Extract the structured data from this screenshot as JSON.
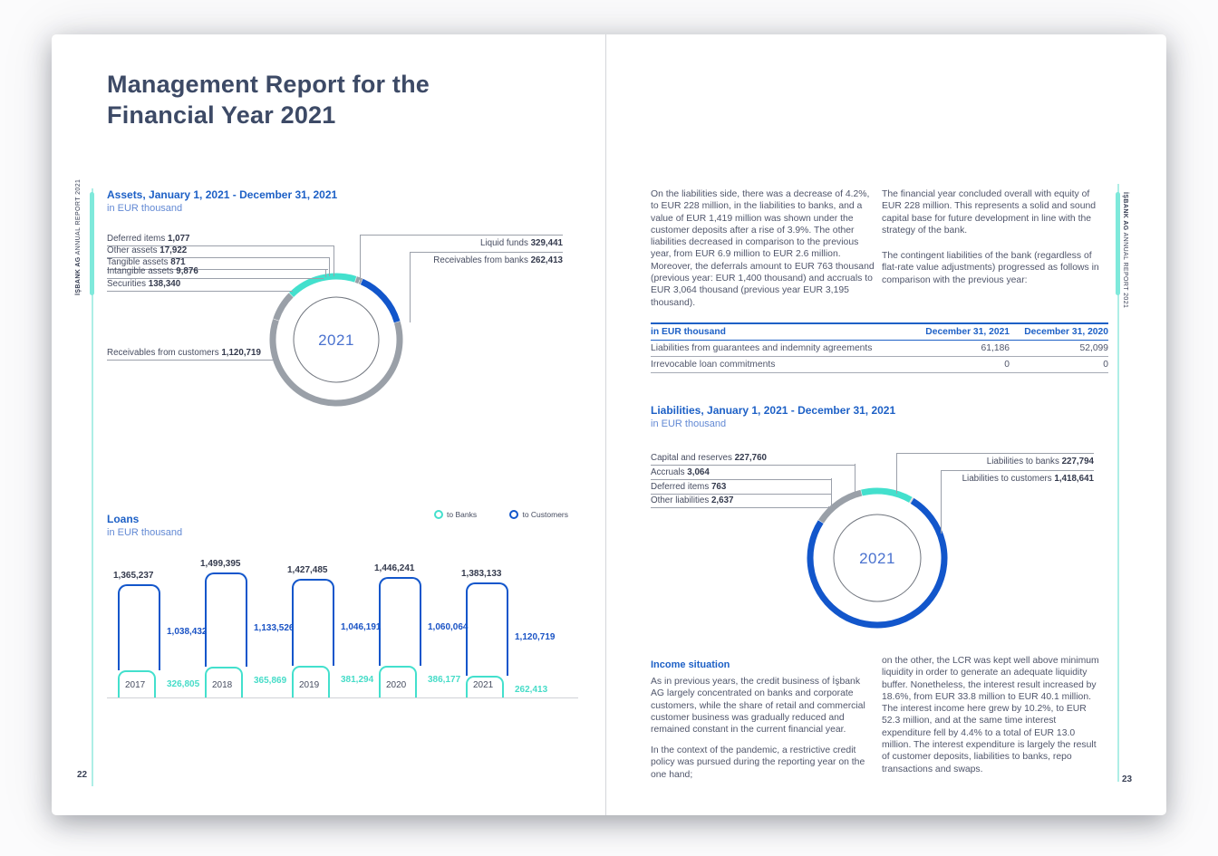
{
  "report": {
    "brand_bold": "İŞBANK AG",
    "brand_rest": " ANNUAL REPORT 2021",
    "accent_teal": "#43e0cd",
    "accent_blue": "#1256cb",
    "accent_gray": "#9aa0a8"
  },
  "left_page": {
    "page_number": "22",
    "title": "Management Report for the Financial Year 2021",
    "assets": {
      "callouts_left": [
        {
          "label": "Deferred items",
          "value": "1,077"
        },
        {
          "label": "Other assets",
          "value": "17,922"
        },
        {
          "label": "Tangible assets",
          "value": "871"
        },
        {
          "label": "Intangible assets",
          "value": "9,876"
        },
        {
          "label": "Securities",
          "value": "138,340"
        },
        {
          "label": "Receivables from customers",
          "value": "1,120,719"
        }
      ],
      "callouts_right": [
        {
          "label": "Liquid funds",
          "value": "329,441"
        },
        {
          "label": "Receivables from banks",
          "value": "262,413"
        }
      ]
    }
  },
  "right_page": {
    "page_number": "23",
    "col1_paragraph": "On the liabilities side, there was a decrease of 4.2%, to EUR 228 million, in the liabilities to banks, and a value of EUR 1,419 million was shown under the customer deposits after a rise of 3.9%. The other liabilities decreased in comparison to the previous year, from EUR 6.9 million to EUR 2.6 million. Moreover, the deferrals amount to EUR 763 thousand (previous year: EUR 1,400 thousand) and accruals to EUR 3,064 thousand (previous year EUR 3,195 thousand).",
    "col2_paragraphs": [
      "The financial year concluded overall with equity of EUR 228 million. This represents a solid and sound capital base for future development in line with the strategy of the bank.",
      "The contingent liabilities of the bank (regardless of flat-rate value adjustments) progressed as follows in comparison with the previous year:"
    ],
    "table": {
      "headers": [
        "in EUR thousand",
        "December 31, 2021",
        "December 31, 2020"
      ],
      "rows": [
        [
          "Liabilities from guarantees and indemnity agreements",
          "61,186",
          "52,099"
        ],
        [
          "Irrevocable loan commitments",
          "0",
          "0"
        ]
      ]
    },
    "liabilities": {
      "callouts_left": [
        {
          "label": "Capital and reserves",
          "value": "227,760"
        },
        {
          "label": "Accruals",
          "value": "3,064"
        },
        {
          "label": "Deferred items",
          "value": "763"
        },
        {
          "label": "Other liabilities",
          "value": "2,637"
        }
      ],
      "callouts_right": [
        {
          "label": "Liabilities to banks",
          "value": "227,794"
        },
        {
          "label": "Liabilities to customers",
          "value": "1,418,641"
        }
      ]
    },
    "income": {
      "heading": "Income situation",
      "col1_paragraphs": [
        "As in previous years, the credit business of İşbank AG largely concentrated on banks and corporate customers, while the share of retail and commercial customer business was gradually reduced and remained constant in the current financial year.",
        "In the context of the pandemic, a restrictive credit policy was pursued during the reporting year on the one hand;"
      ],
      "col2_paragraph": "on the other, the LCR was kept well above minimum liquidity in order to generate an adequate liquidity buffer. Nonetheless, the interest result increased by 18.6%, from EUR 33.8 million to EUR 40.1 million. The interest income here grew by 10.2%, to EUR 52.3 million, and at the same time interest expenditure fell by 4.4% to a total of EUR 13.0 million. The interest expenditure is largely the result of customer deposits, liabilities to banks, repo transactions and swaps."
    }
  },
  "chart_data": [
    {
      "type": "pie",
      "variant": "donut",
      "title": "Assets, January 1, 2021 - December 31, 2021",
      "unit": "in EUR thousand",
      "center_label": "2021",
      "start_angle": -45,
      "legend_position": "callouts",
      "segments": [
        {
          "label": "Liquid funds",
          "value": 329441,
          "color": "#43e0cd"
        },
        {
          "label": "Deferred items",
          "value": 1077,
          "color": "#9aa0a8"
        },
        {
          "label": "Other assets",
          "value": 17922,
          "color": "#9aa0a8"
        },
        {
          "label": "Tangible assets",
          "value": 871,
          "color": "#9aa0a8"
        },
        {
          "label": "Intangible assets",
          "value": 9876,
          "color": "#9aa0a8"
        },
        {
          "label": "Receivables from banks",
          "value": 262413,
          "color": "#1256cb"
        },
        {
          "label": "Receivables from customers",
          "value": 1120719,
          "color": "#9aa0a8"
        },
        {
          "label": "Securities",
          "value": 138340,
          "color": "#9aa0a8"
        }
      ]
    },
    {
      "type": "bar",
      "title": "Loans",
      "unit": "in EUR thousand",
      "categories": [
        "2017",
        "2018",
        "2019",
        "2020",
        "2021"
      ],
      "totals": [
        1365237,
        1499395,
        1427485,
        1446241,
        1383133
      ],
      "series": [
        {
          "name": "to Banks",
          "color": "#43e0cd",
          "values": [
            326805,
            365869,
            381294,
            386177,
            262413
          ]
        },
        {
          "name": "to Customers",
          "color": "#1256cb",
          "values": [
            1038432,
            1133526,
            1046191,
            1060064,
            1120719
          ]
        }
      ],
      "legend_position": "top-right",
      "grid": false
    },
    {
      "type": "pie",
      "variant": "donut",
      "title": "Liabilities, January 1, 2021 - December 31, 2021",
      "unit": "in EUR thousand",
      "center_label": "2021",
      "start_angle": -57,
      "legend_position": "callouts",
      "segments": [
        {
          "label": "Capital and reserves",
          "value": 227760,
          "color": "#9aa0a8"
        },
        {
          "label": "Liabilities to banks",
          "value": 227794,
          "color": "#43e0cd"
        },
        {
          "label": "Accruals",
          "value": 3064,
          "color": "#9aa0a8"
        },
        {
          "label": "Deferred items",
          "value": 763,
          "color": "#9aa0a8"
        },
        {
          "label": "Other liabilities",
          "value": 2637,
          "color": "#9aa0a8"
        },
        {
          "label": "Liabilities to customers",
          "value": 1418641,
          "color": "#1256cb"
        }
      ]
    }
  ]
}
